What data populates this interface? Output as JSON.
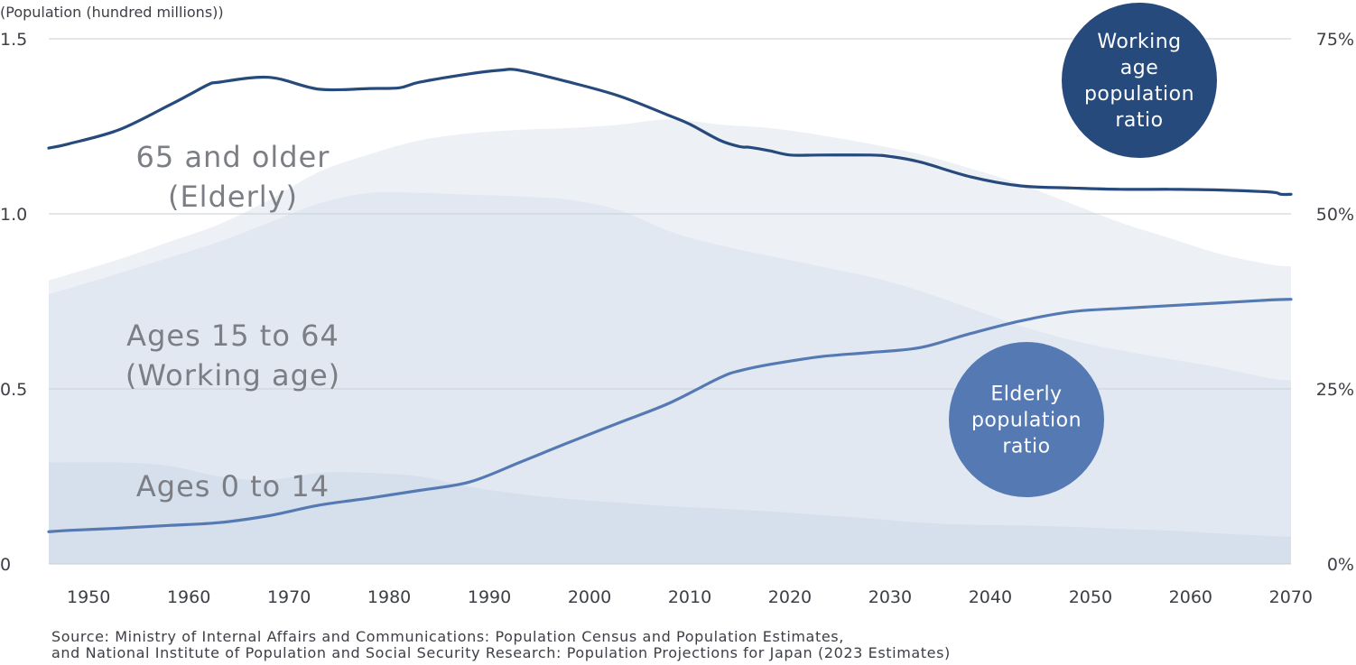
{
  "chart_data": {
    "type": "area",
    "y_axis_left": {
      "label": "(Population (hundred millions))",
      "ticks": [
        "0",
        "0.5",
        "1.0",
        "1.5"
      ],
      "ylim": [
        0,
        1.5
      ]
    },
    "y_axis_right": {
      "ticks": [
        "0%",
        "25%",
        "50%",
        "75%"
      ],
      "ylim": [
        0,
        75
      ]
    },
    "x_axis": {
      "ticks": [
        "1950",
        "1960",
        "1970",
        "1980",
        "1990",
        "2000",
        "2010",
        "2020",
        "2030",
        "2040",
        "2050",
        "2060",
        "2070"
      ],
      "xlim": [
        1948,
        2072
      ]
    },
    "grid": "horizontal",
    "stacked_areas": [
      {
        "name": "Ages 0 to 14",
        "label": "Ages 0 to 14",
        "color": "#d6dfec",
        "x": [
          1948,
          1955,
          1960,
          1965,
          1970,
          1975,
          1980,
          1985,
          1990,
          1995,
          2000,
          2005,
          2010,
          2015,
          2020,
          2025,
          2030,
          2035,
          2040,
          2045,
          2050,
          2055,
          2060,
          2065,
          2070,
          2072
        ],
        "values": [
          0.29,
          0.29,
          0.28,
          0.25,
          0.24,
          0.26,
          0.26,
          0.25,
          0.22,
          0.2,
          0.185,
          0.175,
          0.165,
          0.158,
          0.15,
          0.14,
          0.13,
          0.118,
          0.112,
          0.11,
          0.106,
          0.1,
          0.095,
          0.087,
          0.08,
          0.078
        ]
      },
      {
        "name": "Ages 15 to 64 (Working age)",
        "label": "Ages 15 to 64\n(Working age)",
        "color": "#e2e8f1",
        "x": [
          1948,
          1955,
          1960,
          1965,
          1970,
          1975,
          1980,
          1985,
          1990,
          1995,
          2000,
          2005,
          2010,
          2015,
          2020,
          2025,
          2030,
          2035,
          2040,
          2045,
          2050,
          2055,
          2060,
          2065,
          2070,
          2072
        ],
        "values": [
          0.77,
          0.83,
          0.875,
          0.92,
          0.975,
          1.03,
          1.06,
          1.06,
          1.055,
          1.05,
          1.04,
          1.01,
          0.95,
          0.91,
          0.88,
          0.85,
          0.82,
          0.78,
          0.73,
          0.68,
          0.64,
          0.61,
          0.585,
          0.56,
          0.53,
          0.525
        ]
      },
      {
        "name": "65 and older (Elderly)",
        "label": "65 and older\n(Elderly)",
        "color": "#edf1f6",
        "x": [
          1948,
          1955,
          1960,
          1965,
          1970,
          1975,
          1980,
          1985,
          1990,
          1995,
          2000,
          2005,
          2010,
          2015,
          2020,
          2025,
          2030,
          2035,
          2040,
          2045,
          2050,
          2055,
          2060,
          2065,
          2070,
          2072
        ],
        "values": [
          0.81,
          0.87,
          0.92,
          0.97,
          1.04,
          1.12,
          1.17,
          1.21,
          1.23,
          1.24,
          1.245,
          1.255,
          1.27,
          1.255,
          1.245,
          1.225,
          1.2,
          1.17,
          1.13,
          1.085,
          1.03,
          0.975,
          0.93,
          0.885,
          0.855,
          0.85
        ]
      }
    ],
    "ratio_lines": [
      {
        "name": "Working age population ratio",
        "label": "Working\nage\npopulation\nratio",
        "color": "#264a7c",
        "bubble_color": "#264a7c",
        "x": [
          1948,
          1950,
          1955,
          1960,
          1962,
          1964,
          1965,
          1970,
          1975,
          1980,
          1983,
          1985,
          1990,
          1993,
          1995,
          2000,
          2005,
          2010,
          2012,
          2015,
          2017,
          2018,
          2020,
          2022,
          2025,
          2030,
          2032,
          2035,
          2040,
          2045,
          2050,
          2055,
          2060,
          2065,
          2070,
          2071,
          2072
        ],
        "values": [
          59.4,
          60.0,
          62.0,
          65.5,
          67.0,
          68.5,
          68.8,
          69.5,
          67.8,
          67.9,
          68.0,
          68.8,
          70.0,
          70.5,
          70.5,
          68.8,
          66.8,
          64.0,
          62.8,
          60.5,
          59.6,
          59.5,
          59.0,
          58.4,
          58.4,
          58.4,
          58.2,
          57.4,
          55.3,
          54.0,
          53.7,
          53.5,
          53.5,
          53.4,
          53.1,
          52.8,
          52.8
        ]
      },
      {
        "name": "Elderly population ratio",
        "label": "Elderly\npopulation\nratio",
        "color": "#557ab3",
        "bubble_color": "#557ab3",
        "x": [
          1948,
          1950,
          1955,
          1960,
          1965,
          1970,
          1975,
          1980,
          1985,
          1990,
          1995,
          2000,
          2005,
          2010,
          2015,
          2017,
          2020,
          2025,
          2030,
          2035,
          2040,
          2045,
          2050,
          2055,
          2060,
          2065,
          2070,
          2072
        ],
        "values": [
          4.6,
          4.8,
          5.1,
          5.5,
          5.9,
          6.9,
          8.4,
          9.4,
          10.5,
          11.7,
          14.5,
          17.4,
          20.2,
          23.0,
          26.6,
          27.6,
          28.5,
          29.6,
          30.2,
          30.9,
          32.9,
          34.7,
          36.0,
          36.5,
          36.9,
          37.3,
          37.7,
          37.8
        ]
      }
    ],
    "source": [
      "Source: Ministry of Internal Affairs and Communications: Population Census and Population Estimates,",
      "and National Institute of Population and Social Security Research: Population Projections for Japan (2023 Estimates)"
    ]
  }
}
